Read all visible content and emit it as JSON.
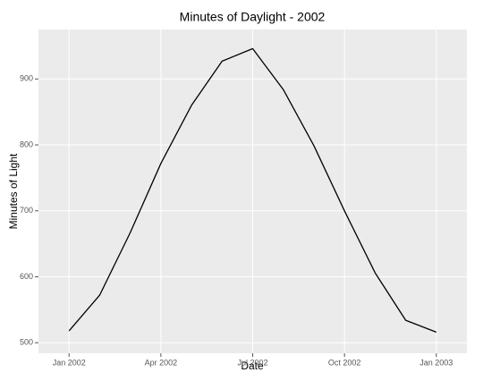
{
  "chart_data": {
    "type": "line",
    "title": "Minutes of Daylight - 2002",
    "x_label": "Date",
    "y_label": "Minutes of Light",
    "x": [
      "2002-01",
      "2002-02",
      "2002-03",
      "2002-04",
      "2002-05",
      "2002-06",
      "2002-07",
      "2002-08",
      "2002-09",
      "2002-10",
      "2002-11",
      "2002-12",
      "2003-01"
    ],
    "values": [
      518,
      572,
      667,
      772,
      860,
      927,
      946,
      884,
      799,
      700,
      606,
      534,
      516
    ],
    "color": "#000000",
    "xlim": [
      "2001-12",
      "2003-02"
    ],
    "xticks": [
      {
        "value": "2002-01",
        "label": "Jan 2002"
      },
      {
        "value": "2002-04",
        "label": "Apr 2002"
      },
      {
        "value": "2002-07",
        "label": "Jul 2002"
      },
      {
        "value": "2002-10",
        "label": "Oct 2002"
      },
      {
        "value": "2003-01",
        "label": "Jan 2003"
      }
    ],
    "ylim": [
      484,
      975
    ],
    "yticks": [
      500,
      600,
      700,
      800,
      900
    ],
    "grid": true
  }
}
